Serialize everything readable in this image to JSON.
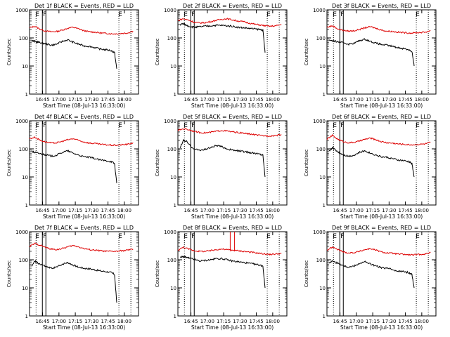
{
  "chart_data": {
    "type": "line",
    "panel_titles": [
      "Det 1f BLACK = Events, RED = LLD",
      "Det 2f BLACK = Events, RED = LLD",
      "Det 3f BLACK = Events, RED = LLD",
      "Det 4f BLACK = Events, RED = LLD",
      "Det 5f BLACK = Events, RED = LLD",
      "Det 6f BLACK = Events, RED = LLD",
      "Det 7f BLACK = Events, RED = LLD",
      "Det 8f BLACK = Events, RED = LLD",
      "Det 9f BLACK = Events, RED = LLD"
    ],
    "xlabel": "Start Time (08-Jul-13 16:33:00)",
    "ylabel": "Counts/sec",
    "x_ticks": [
      "16:45",
      "17:00",
      "17:15",
      "17:30",
      "17:45",
      "18:00"
    ],
    "x_range_minutes": [
      0,
      100
    ],
    "x_tick_minutes": [
      12,
      27,
      42,
      57,
      72,
      87
    ],
    "y_scale": "log",
    "y_range": [
      1,
      1000
    ],
    "y_ticks": [
      "1",
      "10",
      "100",
      "1000"
    ],
    "markers": {
      "E": {
        "label": "E",
        "minutes": [
          6,
          82
        ]
      },
      "F": {
        "label": "F",
        "minutes": [
          15
        ]
      }
    },
    "series_colors": {
      "events": "#000000",
      "lld": "#dd0000"
    },
    "panels": [
      {
        "events_x": [
          2,
          5,
          8,
          12,
          16,
          20,
          25,
          30,
          35,
          40,
          45,
          50,
          55,
          60,
          65,
          70,
          75,
          78,
          80
        ],
        "events_y": [
          80,
          75,
          70,
          65,
          60,
          55,
          60,
          75,
          85,
          70,
          60,
          52,
          50,
          45,
          40,
          38,
          35,
          30,
          8
        ],
        "lld_x": [
          0,
          5,
          10,
          15,
          20,
          25,
          30,
          35,
          40,
          45,
          50,
          55,
          60,
          65,
          70,
          75,
          80,
          85,
          90,
          95
        ],
        "lld_y": [
          230,
          260,
          200,
          175,
          165,
          170,
          190,
          220,
          240,
          210,
          180,
          165,
          160,
          150,
          145,
          140,
          140,
          145,
          150,
          175
        ]
      },
      {
        "events_x": [
          2,
          5,
          8,
          12,
          16,
          20,
          25,
          30,
          35,
          40,
          45,
          50,
          55,
          60,
          65,
          70,
          75,
          78,
          80
        ],
        "events_y": [
          300,
          320,
          280,
          250,
          240,
          250,
          260,
          270,
          280,
          280,
          270,
          260,
          240,
          230,
          220,
          210,
          200,
          190,
          30
        ],
        "lld_x": [
          0,
          5,
          10,
          15,
          20,
          25,
          30,
          35,
          40,
          45,
          50,
          55,
          60,
          65,
          70,
          75,
          80,
          85,
          90,
          95
        ],
        "lld_y": [
          420,
          480,
          430,
          360,
          340,
          350,
          380,
          420,
          460,
          480,
          440,
          400,
          380,
          340,
          310,
          290,
          270,
          260,
          270,
          300
        ]
      },
      {
        "events_x": [
          2,
          5,
          8,
          12,
          16,
          20,
          25,
          30,
          35,
          40,
          45,
          50,
          55,
          60,
          65,
          70,
          75,
          78,
          80
        ],
        "events_y": [
          85,
          80,
          75,
          70,
          65,
          60,
          65,
          80,
          90,
          75,
          65,
          58,
          55,
          50,
          45,
          42,
          38,
          33,
          10
        ],
        "lld_x": [
          0,
          5,
          10,
          15,
          20,
          25,
          30,
          35,
          40,
          45,
          50,
          55,
          60,
          65,
          70,
          75,
          80,
          85,
          90,
          95
        ],
        "lld_y": [
          240,
          270,
          210,
          185,
          175,
          180,
          200,
          230,
          250,
          220,
          190,
          175,
          170,
          160,
          155,
          150,
          150,
          155,
          160,
          180
        ]
      },
      {
        "events_x": [
          2,
          5,
          8,
          12,
          16,
          20,
          25,
          30,
          35,
          40,
          45,
          50,
          55,
          60,
          65,
          70,
          75,
          78,
          80
        ],
        "events_y": [
          80,
          75,
          70,
          65,
          60,
          55,
          60,
          75,
          85,
          70,
          60,
          52,
          50,
          45,
          40,
          38,
          35,
          30,
          6
        ],
        "lld_x": [
          0,
          5,
          10,
          15,
          20,
          25,
          30,
          35,
          40,
          45,
          50,
          55,
          60,
          65,
          70,
          75,
          80,
          85,
          90,
          95
        ],
        "lld_y": [
          230,
          260,
          200,
          175,
          160,
          165,
          185,
          210,
          230,
          200,
          175,
          160,
          155,
          145,
          140,
          135,
          135,
          140,
          145,
          165
        ]
      },
      {
        "events_x": [
          2,
          5,
          8,
          12,
          16,
          20,
          25,
          30,
          35,
          40,
          45,
          50,
          55,
          60,
          65,
          70,
          75,
          78,
          80
        ],
        "events_y": [
          110,
          200,
          180,
          120,
          95,
          90,
          95,
          110,
          130,
          120,
          100,
          90,
          85,
          80,
          75,
          70,
          65,
          60,
          10
        ],
        "lld_x": [
          0,
          5,
          10,
          15,
          20,
          25,
          30,
          35,
          40,
          45,
          50,
          55,
          60,
          65,
          70,
          75,
          80,
          85,
          90,
          95
        ],
        "lld_y": [
          450,
          520,
          480,
          420,
          380,
          370,
          390,
          420,
          450,
          430,
          400,
          380,
          360,
          340,
          320,
          300,
          290,
          290,
          300,
          320
        ]
      },
      {
        "events_x": [
          2,
          5,
          8,
          12,
          16,
          20,
          25,
          30,
          35,
          40,
          45,
          50,
          55,
          60,
          65,
          70,
          75,
          78,
          80
        ],
        "events_y": [
          80,
          110,
          90,
          70,
          60,
          55,
          60,
          75,
          85,
          70,
          60,
          52,
          50,
          45,
          40,
          38,
          35,
          30,
          10
        ],
        "lld_x": [
          0,
          5,
          10,
          15,
          20,
          25,
          30,
          35,
          40,
          45,
          50,
          55,
          60,
          65,
          70,
          75,
          80,
          85,
          90,
          95
        ],
        "lld_y": [
          220,
          300,
          220,
          180,
          165,
          170,
          190,
          220,
          240,
          210,
          180,
          165,
          160,
          150,
          145,
          140,
          140,
          145,
          150,
          170
        ]
      },
      {
        "events_x": [
          2,
          5,
          8,
          12,
          16,
          20,
          25,
          30,
          35,
          40,
          45,
          50,
          55,
          60,
          65,
          70,
          75,
          78,
          80
        ],
        "events_y": [
          60,
          90,
          75,
          65,
          55,
          50,
          55,
          70,
          80,
          65,
          55,
          50,
          48,
          44,
          40,
          38,
          35,
          30,
          3
        ],
        "lld_x": [
          0,
          5,
          10,
          15,
          20,
          25,
          30,
          35,
          40,
          45,
          50,
          55,
          60,
          65,
          70,
          75,
          80,
          85,
          90,
          95
        ],
        "lld_y": [
          300,
          380,
          330,
          270,
          240,
          230,
          250,
          290,
          320,
          290,
          250,
          230,
          220,
          210,
          200,
          200,
          200,
          210,
          220,
          240
        ]
      },
      {
        "events_x": [
          2,
          5,
          8,
          12,
          16,
          20,
          25,
          30,
          35,
          40,
          45,
          50,
          55,
          60,
          65,
          70,
          75,
          78,
          80
        ],
        "events_y": [
          120,
          130,
          120,
          110,
          100,
          90,
          95,
          100,
          110,
          110,
          100,
          90,
          85,
          80,
          75,
          70,
          65,
          60,
          10
        ],
        "lld_x": [
          0,
          5,
          10,
          15,
          20,
          25,
          30,
          35,
          40,
          45,
          50,
          55,
          60,
          65,
          70,
          75,
          80,
          85,
          90,
          95
        ],
        "lld_y": [
          220,
          280,
          240,
          210,
          200,
          200,
          210,
          230,
          240,
          230,
          220,
          210,
          200,
          190,
          180,
          170,
          160,
          155,
          160,
          170
        ]
      },
      {
        "events_x": [
          2,
          5,
          8,
          12,
          16,
          20,
          25,
          30,
          35,
          40,
          45,
          50,
          55,
          60,
          65,
          70,
          75,
          78,
          80
        ],
        "events_y": [
          80,
          90,
          80,
          70,
          60,
          55,
          60,
          75,
          85,
          70,
          60,
          52,
          50,
          45,
          40,
          38,
          35,
          30,
          10
        ],
        "lld_x": [
          0,
          5,
          10,
          15,
          20,
          25,
          30,
          35,
          40,
          45,
          50,
          55,
          60,
          65,
          70,
          75,
          80,
          85,
          90,
          95
        ],
        "lld_y": [
          220,
          280,
          230,
          190,
          175,
          180,
          200,
          230,
          250,
          220,
          190,
          175,
          170,
          160,
          155,
          150,
          150,
          155,
          160,
          180
        ]
      }
    ],
    "panel8_spikes_minutes": [
      48,
      52
    ]
  }
}
